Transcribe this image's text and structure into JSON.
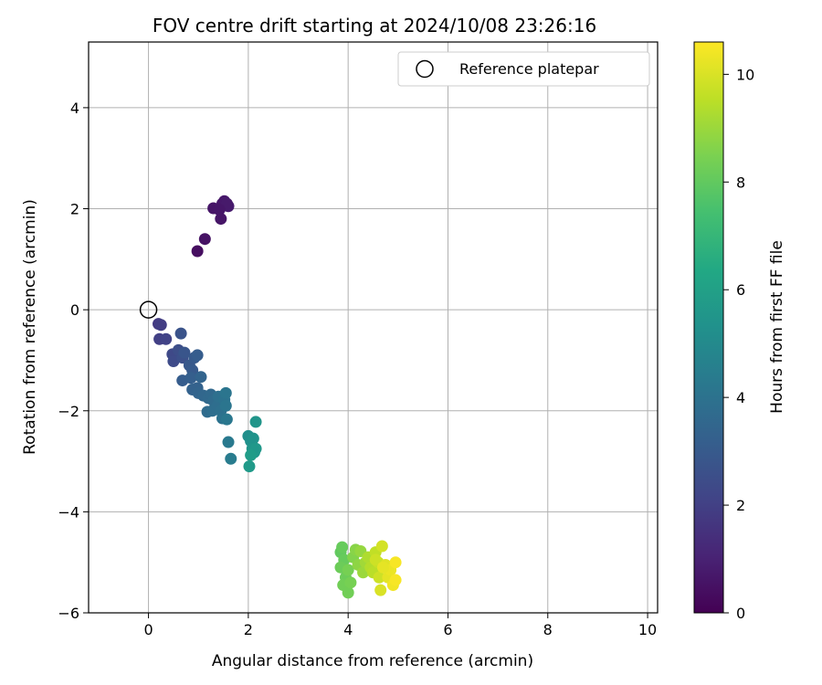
{
  "chart_data": {
    "type": "scatter",
    "title": "FOV centre drift starting at 2024/10/08 23:26:16",
    "xlabel": "Angular distance from reference (arcmin)",
    "ylabel": "Rotation from reference (arcmin)",
    "xlim": [
      -1.2,
      10.2
    ],
    "ylim": [
      -6,
      5.3
    ],
    "xticks": [
      0,
      2,
      4,
      6,
      8,
      10
    ],
    "yticks": [
      -6,
      -4,
      -2,
      0,
      2,
      4
    ],
    "grid": true,
    "legend": {
      "placement": "top-right",
      "entries": [
        "Reference platepar"
      ]
    },
    "reference_point": {
      "x": 0,
      "y": 0,
      "label": "Reference platepar"
    },
    "colorbar": {
      "label": "Hours from first FF file",
      "min": 0,
      "max": 10.6,
      "ticks": [
        0,
        2,
        4,
        6,
        8,
        10
      ],
      "colormap": "viridis"
    },
    "points": [
      {
        "x": 0.98,
        "y": 1.16,
        "c": 0.4
      },
      {
        "x": 1.13,
        "y": 1.4,
        "c": 0.5
      },
      {
        "x": 1.3,
        "y": 2.01,
        "c": 0.6
      },
      {
        "x": 1.45,
        "y": 1.8,
        "c": 0.6
      },
      {
        "x": 1.48,
        "y": 2.1,
        "c": 0.7
      },
      {
        "x": 1.52,
        "y": 2.15,
        "c": 0.7
      },
      {
        "x": 1.6,
        "y": 2.05,
        "c": 0.8
      },
      {
        "x": 1.57,
        "y": 2.1,
        "c": 0.75
      },
      {
        "x": 1.42,
        "y": 1.98,
        "c": 0.65
      },
      {
        "x": 0.2,
        "y": -0.28,
        "c": 1.8
      },
      {
        "x": 0.25,
        "y": -0.3,
        "c": 1.9
      },
      {
        "x": 0.22,
        "y": -0.58,
        "c": 2.0
      },
      {
        "x": 0.35,
        "y": -0.58,
        "c": 2.1
      },
      {
        "x": 0.48,
        "y": -0.88,
        "c": 2.3
      },
      {
        "x": 0.5,
        "y": -1.02,
        "c": 2.4
      },
      {
        "x": 0.6,
        "y": -0.8,
        "c": 2.5
      },
      {
        "x": 0.68,
        "y": -0.95,
        "c": 2.6
      },
      {
        "x": 0.65,
        "y": -0.47,
        "c": 2.7
      },
      {
        "x": 0.72,
        "y": -0.85,
        "c": 2.8
      },
      {
        "x": 0.82,
        "y": -1.1,
        "c": 2.9
      },
      {
        "x": 0.88,
        "y": -1.2,
        "c": 3.0
      },
      {
        "x": 0.92,
        "y": -0.95,
        "c": 3.0
      },
      {
        "x": 0.98,
        "y": -0.9,
        "c": 3.1
      },
      {
        "x": 0.68,
        "y": -1.4,
        "c": 3.1
      },
      {
        "x": 0.85,
        "y": -1.35,
        "c": 3.2
      },
      {
        "x": 0.88,
        "y": -1.58,
        "c": 3.3
      },
      {
        "x": 0.98,
        "y": -1.55,
        "c": 3.3
      },
      {
        "x": 1.05,
        "y": -1.33,
        "c": 3.4
      },
      {
        "x": 1.0,
        "y": -1.65,
        "c": 3.4
      },
      {
        "x": 1.1,
        "y": -1.7,
        "c": 3.5
      },
      {
        "x": 1.2,
        "y": -1.75,
        "c": 3.6
      },
      {
        "x": 1.25,
        "y": -1.68,
        "c": 3.6
      },
      {
        "x": 1.3,
        "y": -1.8,
        "c": 3.7
      },
      {
        "x": 1.18,
        "y": -2.02,
        "c": 3.7
      },
      {
        "x": 1.28,
        "y": -2.0,
        "c": 3.8
      },
      {
        "x": 1.38,
        "y": -1.9,
        "c": 3.8
      },
      {
        "x": 1.4,
        "y": -1.72,
        "c": 3.9
      },
      {
        "x": 1.45,
        "y": -2.0,
        "c": 3.9
      },
      {
        "x": 1.48,
        "y": -2.15,
        "c": 4.0
      },
      {
        "x": 1.52,
        "y": -1.78,
        "c": 4.0
      },
      {
        "x": 1.55,
        "y": -1.65,
        "c": 4.1
      },
      {
        "x": 1.55,
        "y": -1.9,
        "c": 4.1
      },
      {
        "x": 1.57,
        "y": -2.17,
        "c": 4.2
      },
      {
        "x": 1.6,
        "y": -2.62,
        "c": 4.3
      },
      {
        "x": 1.65,
        "y": -2.95,
        "c": 4.4
      },
      {
        "x": 2.0,
        "y": -2.5,
        "c": 5.2
      },
      {
        "x": 2.05,
        "y": -2.6,
        "c": 5.3
      },
      {
        "x": 2.1,
        "y": -2.55,
        "c": 5.4
      },
      {
        "x": 2.15,
        "y": -2.22,
        "c": 5.5
      },
      {
        "x": 2.08,
        "y": -2.75,
        "c": 5.5
      },
      {
        "x": 2.12,
        "y": -2.82,
        "c": 5.6
      },
      {
        "x": 2.15,
        "y": -2.75,
        "c": 5.6
      },
      {
        "x": 2.02,
        "y": -3.1,
        "c": 5.7
      },
      {
        "x": 2.05,
        "y": -2.88,
        "c": 5.8
      },
      {
        "x": 3.85,
        "y": -4.8,
        "c": 8.0
      },
      {
        "x": 3.88,
        "y": -4.7,
        "c": 8.1
      },
      {
        "x": 3.92,
        "y": -4.95,
        "c": 8.1
      },
      {
        "x": 3.85,
        "y": -5.1,
        "c": 8.2
      },
      {
        "x": 3.95,
        "y": -5.3,
        "c": 8.2
      },
      {
        "x": 3.9,
        "y": -5.45,
        "c": 8.3
      },
      {
        "x": 4.0,
        "y": -5.6,
        "c": 8.3
      },
      {
        "x": 4.05,
        "y": -5.4,
        "c": 8.4
      },
      {
        "x": 4.0,
        "y": -5.15,
        "c": 8.4
      },
      {
        "x": 4.1,
        "y": -4.9,
        "c": 8.6
      },
      {
        "x": 4.15,
        "y": -4.75,
        "c": 8.7
      },
      {
        "x": 4.2,
        "y": -5.05,
        "c": 8.8
      },
      {
        "x": 4.25,
        "y": -4.78,
        "c": 8.9
      },
      {
        "x": 4.3,
        "y": -5.2,
        "c": 9.0
      },
      {
        "x": 4.35,
        "y": -5.0,
        "c": 9.1
      },
      {
        "x": 4.4,
        "y": -4.9,
        "c": 9.3
      },
      {
        "x": 4.45,
        "y": -5.1,
        "c": 9.4
      },
      {
        "x": 4.5,
        "y": -5.2,
        "c": 9.5
      },
      {
        "x": 4.55,
        "y": -4.8,
        "c": 9.6
      },
      {
        "x": 4.6,
        "y": -5.0,
        "c": 9.7
      },
      {
        "x": 4.62,
        "y": -5.3,
        "c": 9.8
      },
      {
        "x": 4.68,
        "y": -4.68,
        "c": 9.9
      },
      {
        "x": 4.65,
        "y": -5.55,
        "c": 10.0
      },
      {
        "x": 4.75,
        "y": -5.05,
        "c": 10.1
      },
      {
        "x": 4.8,
        "y": -5.3,
        "c": 10.2
      },
      {
        "x": 4.85,
        "y": -5.15,
        "c": 10.3
      },
      {
        "x": 4.9,
        "y": -5.45,
        "c": 10.4
      },
      {
        "x": 4.95,
        "y": -5.0,
        "c": 10.5
      },
      {
        "x": 4.95,
        "y": -5.35,
        "c": 10.5
      },
      {
        "x": 4.55,
        "y": -4.95,
        "c": 9.8
      },
      {
        "x": 4.7,
        "y": -5.1,
        "c": 10.2
      }
    ]
  }
}
